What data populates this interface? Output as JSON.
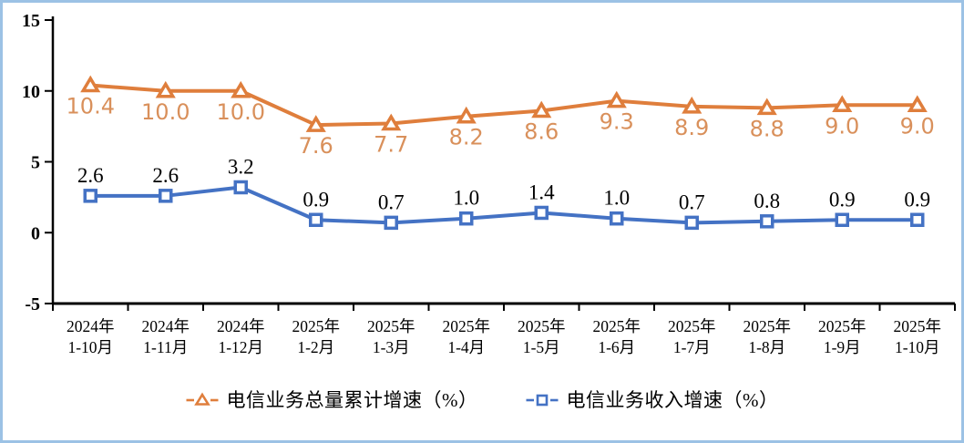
{
  "chart": {
    "frame_border_color": "#9CC2E5",
    "background_color": "#FFFFFF",
    "axis_color": "#000000"
  },
  "chart_data": {
    "type": "line",
    "title": "",
    "xlabel": "",
    "ylabel": "",
    "ylim": [
      -5,
      15
    ],
    "yticks": [
      15,
      10,
      5,
      0,
      -5
    ],
    "grid": false,
    "legend_position": "bottom",
    "categories": [
      {
        "top": "2024年",
        "bottom": "1-10月"
      },
      {
        "top": "2024年",
        "bottom": "1-11月"
      },
      {
        "top": "2024年",
        "bottom": "1-12月"
      },
      {
        "top": "2025年",
        "bottom": "1-2月"
      },
      {
        "top": "2025年",
        "bottom": "1-3月"
      },
      {
        "top": "2025年",
        "bottom": "1-4月"
      },
      {
        "top": "2025年",
        "bottom": "1-5月"
      },
      {
        "top": "2025年",
        "bottom": "1-6月"
      },
      {
        "top": "2025年",
        "bottom": "1-7月"
      },
      {
        "top": "2025年",
        "bottom": "1-8月"
      },
      {
        "top": "2025年",
        "bottom": "1-9月"
      },
      {
        "top": "2025年",
        "bottom": "1-10月"
      }
    ],
    "series": [
      {
        "name": "电信业务总量累计增速（%）",
        "values": [
          10.4,
          10.0,
          10.0,
          7.6,
          7.7,
          8.2,
          8.6,
          9.3,
          8.9,
          8.8,
          9.0,
          9.0
        ],
        "color": "#DF7E3C",
        "label_color": "#D9905B",
        "marker": "triangle",
        "label_position": "below"
      },
      {
        "name": "电信业务收入增速（%）",
        "values": [
          2.6,
          2.6,
          3.2,
          0.9,
          0.7,
          1.0,
          1.4,
          1.0,
          0.7,
          0.8,
          0.9,
          0.9
        ],
        "color": "#4472C4",
        "label_color": "#000000",
        "marker": "square",
        "label_position": "above"
      }
    ]
  }
}
